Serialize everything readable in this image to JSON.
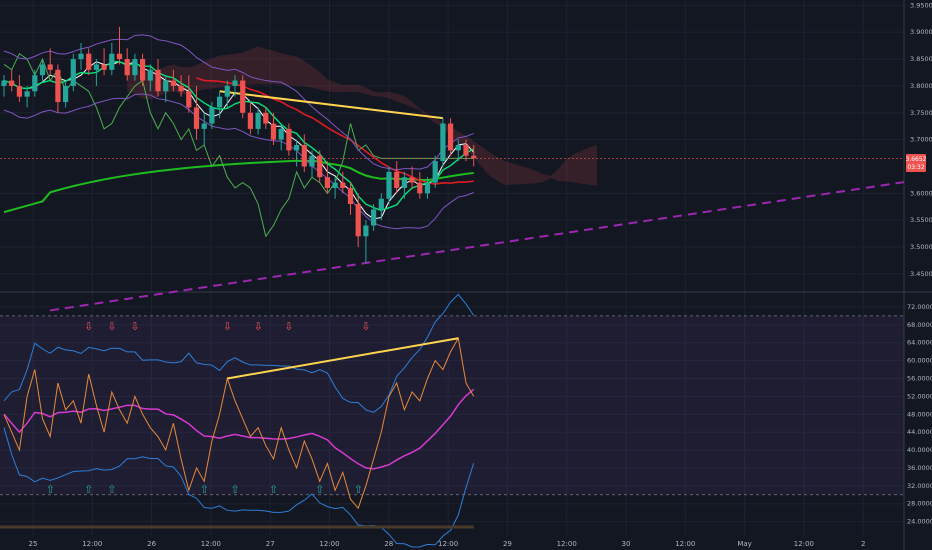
{
  "chart_data": {
    "type": "candlestick",
    "colors": {
      "background": "#131722",
      "grid": "#1e2230",
      "up_candle": "#26a69a",
      "down_candle": "#ef5350",
      "ema_long": "#1fbb1f",
      "ema_short": "#e01b24",
      "tenkan": "#ffffff",
      "kijun_fast": "#00e676",
      "chikou": "#4caf50",
      "cloud_line": "#7e57c2",
      "trendline_yellow": "#ffd54f",
      "support_dashed": "#9c27b0",
      "rsi": "#e8893a",
      "rsi_ma": "#d63ad0",
      "bollinger": "#2f7fd8",
      "sell_arrow": "#ef5350",
      "buy_arrow": "#26a69a"
    },
    "price_pane": {
      "y_ticks": [
        "3.9500",
        "3.9000",
        "3.8500",
        "3.8000",
        "3.7500",
        "3.7000",
        "3.6000",
        "3.5500",
        "3.5000",
        "3.4500"
      ],
      "ylim": [
        3.42,
        3.96
      ],
      "last_price": "3.6652",
      "last_price_sub": "03:32",
      "last_price_value": 3.6652,
      "candles": [
        [
          3.8,
          3.82,
          3.78,
          3.81
        ],
        [
          3.81,
          3.83,
          3.79,
          3.8
        ],
        [
          3.8,
          3.82,
          3.77,
          3.78
        ],
        [
          3.78,
          3.8,
          3.76,
          3.79
        ],
        [
          3.79,
          3.83,
          3.78,
          3.82
        ],
        [
          3.82,
          3.85,
          3.81,
          3.84
        ],
        [
          3.84,
          3.87,
          3.82,
          3.83
        ],
        [
          3.83,
          3.84,
          3.75,
          3.77
        ],
        [
          3.77,
          3.81,
          3.76,
          3.8
        ],
        [
          3.8,
          3.86,
          3.79,
          3.85
        ],
        [
          3.85,
          3.88,
          3.83,
          3.86
        ],
        [
          3.86,
          3.87,
          3.82,
          3.83
        ],
        [
          3.83,
          3.85,
          3.8,
          3.84
        ],
        [
          3.84,
          3.87,
          3.82,
          3.83
        ],
        [
          3.83,
          3.88,
          3.82,
          3.86
        ],
        [
          3.86,
          3.91,
          3.84,
          3.85
        ],
        [
          3.85,
          3.87,
          3.81,
          3.82
        ],
        [
          3.82,
          3.86,
          3.81,
          3.85
        ],
        [
          3.85,
          3.86,
          3.8,
          3.81
        ],
        [
          3.81,
          3.84,
          3.79,
          3.83
        ],
        [
          3.83,
          3.85,
          3.78,
          3.79
        ],
        [
          3.79,
          3.82,
          3.77,
          3.81
        ],
        [
          3.81,
          3.83,
          3.79,
          3.8
        ],
        [
          3.8,
          3.82,
          3.78,
          3.79
        ],
        [
          3.79,
          3.82,
          3.75,
          3.76
        ],
        [
          3.76,
          3.8,
          3.7,
          3.72
        ],
        [
          3.72,
          3.75,
          3.69,
          3.73
        ],
        [
          3.73,
          3.77,
          3.72,
          3.76
        ],
        [
          3.76,
          3.79,
          3.74,
          3.78
        ],
        [
          3.78,
          3.81,
          3.76,
          3.8
        ],
        [
          3.8,
          3.82,
          3.78,
          3.81
        ],
        [
          3.81,
          3.82,
          3.74,
          3.75
        ],
        [
          3.75,
          3.77,
          3.71,
          3.72
        ],
        [
          3.72,
          3.76,
          3.71,
          3.75
        ],
        [
          3.75,
          3.76,
          3.72,
          3.73
        ],
        [
          3.73,
          3.75,
          3.69,
          3.7
        ],
        [
          3.7,
          3.73,
          3.68,
          3.72
        ],
        [
          3.72,
          3.73,
          3.67,
          3.68
        ],
        [
          3.68,
          3.7,
          3.65,
          3.69
        ],
        [
          3.69,
          3.71,
          3.64,
          3.65
        ],
        [
          3.65,
          3.68,
          3.63,
          3.67
        ],
        [
          3.67,
          3.68,
          3.62,
          3.63
        ],
        [
          3.63,
          3.66,
          3.6,
          3.61
        ],
        [
          3.61,
          3.63,
          3.59,
          3.62
        ],
        [
          3.62,
          3.64,
          3.6,
          3.61
        ],
        [
          3.61,
          3.62,
          3.56,
          3.58
        ],
        [
          3.58,
          3.6,
          3.5,
          3.52
        ],
        [
          3.52,
          3.55,
          3.47,
          3.54
        ],
        [
          3.54,
          3.58,
          3.53,
          3.57
        ],
        [
          3.57,
          3.6,
          3.55,
          3.59
        ],
        [
          3.59,
          3.65,
          3.58,
          3.64
        ],
        [
          3.64,
          3.66,
          3.6,
          3.61
        ],
        [
          3.61,
          3.64,
          3.59,
          3.63
        ],
        [
          3.63,
          3.65,
          3.61,
          3.62
        ],
        [
          3.62,
          3.64,
          3.59,
          3.6
        ],
        [
          3.6,
          3.63,
          3.59,
          3.62
        ],
        [
          3.62,
          3.67,
          3.61,
          3.66
        ],
        [
          3.66,
          3.74,
          3.65,
          3.73
        ],
        [
          3.73,
          3.74,
          3.67,
          3.68
        ],
        [
          3.68,
          3.7,
          3.66,
          3.69
        ],
        [
          3.69,
          3.7,
          3.66,
          3.67
        ],
        [
          3.67,
          3.69,
          3.65,
          3.6652
        ]
      ],
      "ema_long_label": "EMA",
      "annotations": [
        "descending resistance trendline",
        "ascending support trendline"
      ]
    },
    "rsi_pane": {
      "y_ticks": [
        "72.0000",
        "68.0000",
        "64.0000",
        "60.0000",
        "56.0000",
        "52.0000",
        "48.0000",
        "44.0000",
        "40.0000",
        "36.0000",
        "32.0000",
        "28.0000",
        "24.0000"
      ],
      "ylim": [
        21,
        74
      ],
      "overbought": 70,
      "oversold": 30,
      "rsi": [
        48,
        44,
        40,
        52,
        58,
        47,
        43,
        55,
        49,
        51,
        46,
        57,
        50,
        44,
        53,
        49,
        46,
        52,
        48,
        45,
        43,
        40,
        46,
        38,
        31,
        36,
        33,
        42,
        48,
        56,
        51,
        47,
        43,
        45,
        41,
        38,
        45,
        40,
        36,
        42,
        38,
        33,
        37,
        31,
        35,
        29,
        27,
        32,
        38,
        44,
        52,
        55,
        49,
        53,
        51,
        56,
        60,
        58,
        62,
        65,
        55,
        52
      ]
    },
    "x_ticks": [
      "25",
      "12:00",
      "26",
      "12:00",
      "27",
      "12:00",
      "28",
      "12:00",
      "29",
      "12:00",
      "30",
      "12:00",
      "May",
      "12:00",
      "2"
    ]
  }
}
